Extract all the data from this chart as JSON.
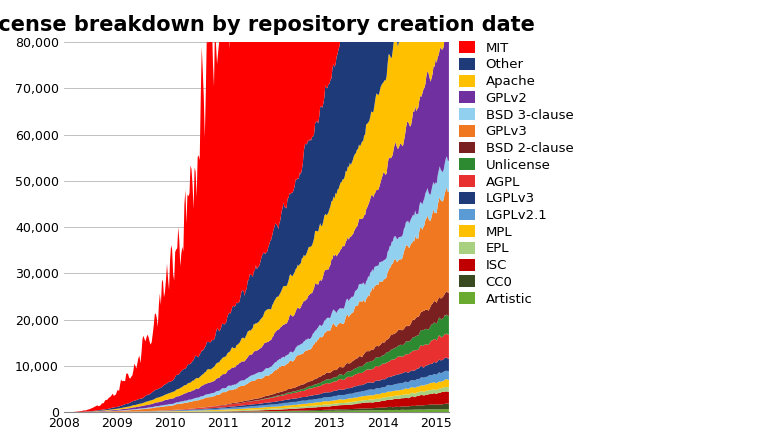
{
  "title": "License breakdown by repository creation date",
  "ylim": [
    0,
    80000
  ],
  "xlim_start": 2008.0,
  "xlim_end": 2015.25,
  "yticks": [
    0,
    10000,
    20000,
    30000,
    40000,
    50000,
    60000,
    70000,
    80000
  ],
  "xtick_years": [
    2008,
    2009,
    2010,
    2011,
    2012,
    2013,
    2014,
    2015
  ],
  "title_fontsize": 15,
  "title_fontweight": "bold",
  "stack_order": [
    "Artistic",
    "CC0",
    "ISC",
    "EPL",
    "MPL",
    "LGPLv2.1",
    "LGPLv3",
    "AGPL",
    "Unlicense",
    "BSD 2-clause",
    "GPLv3",
    "BSD 3-clause",
    "GPLv2",
    "Apache",
    "Other",
    "MIT"
  ],
  "legend_order": [
    "MIT",
    "Other",
    "Apache",
    "GPLv2",
    "BSD 3-clause",
    "GPLv3",
    "BSD 2-clause",
    "Unlicense",
    "AGPL",
    "LGPLv3",
    "LGPLv2.1",
    "MPL",
    "EPL",
    "ISC",
    "CC0",
    "Artistic"
  ],
  "colors": {
    "MIT": "#ff0000",
    "Other": "#1e3a78",
    "Apache": "#ffc000",
    "GPLv2": "#7030a0",
    "BSD 3-clause": "#92d0f0",
    "GPLv3": "#f07820",
    "BSD 2-clause": "#7b2020",
    "Unlicense": "#2d8a30",
    "AGPL": "#e83030",
    "LGPLv3": "#1e3a78",
    "LGPLv2.1": "#5b9bd5",
    "MPL": "#ffc000",
    "EPL": "#a8d080",
    "ISC": "#c00000",
    "CC0": "#3a4a20",
    "Artistic": "#6aaa30"
  },
  "background_color": "#ffffff",
  "grid_color": "#c0c0c0",
  "legend_fontsize": 9.5
}
